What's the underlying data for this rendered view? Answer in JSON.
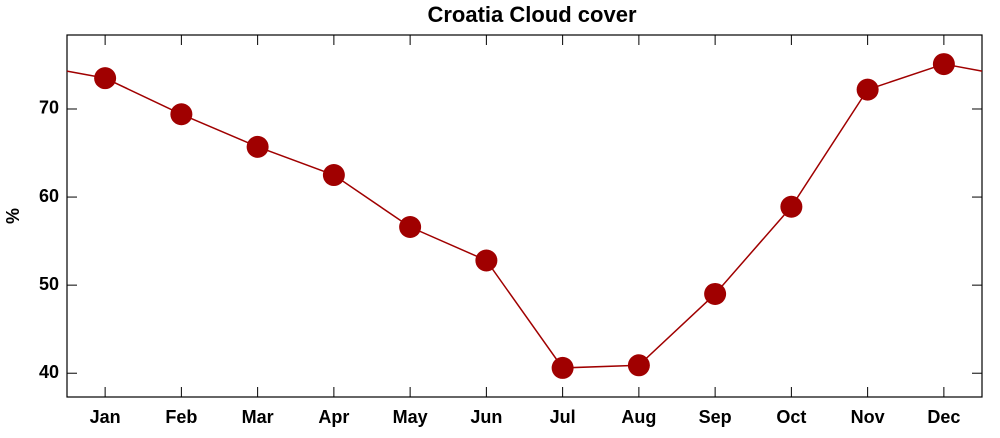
{
  "chart_data": {
    "type": "line",
    "title": "Croatia Cloud cover",
    "y_label": "%",
    "categories": [
      "Jan",
      "Feb",
      "Mar",
      "Apr",
      "May",
      "Jun",
      "Jul",
      "Aug",
      "Sep",
      "Oct",
      "Nov",
      "Dec"
    ],
    "values": [
      73.5,
      69.4,
      65.7,
      62.5,
      56.6,
      52.8,
      40.6,
      40.9,
      49.0,
      58.9,
      72.2,
      75.1
    ],
    "color": "#a00000",
    "ylim": [
      37.3,
      78.4
    ],
    "yticks": [
      40,
      50,
      60,
      70
    ]
  }
}
